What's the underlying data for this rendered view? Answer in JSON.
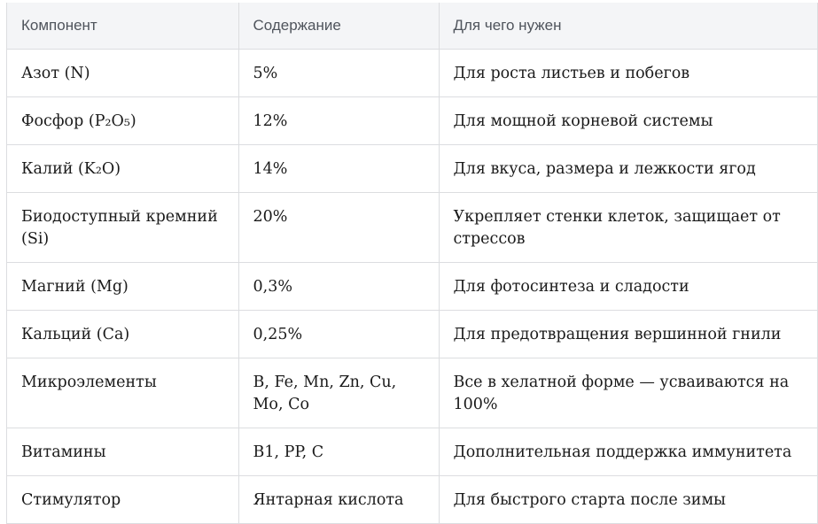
{
  "table": {
    "headers": [
      "Компонент",
      "Содержание",
      "Для чего нужен"
    ],
    "rows": [
      {
        "component": "Азот (N)",
        "content": "5%",
        "purpose": "Для роста листьев и побегов"
      },
      {
        "component": "Фосфор (P₂O₅)",
        "content": "12%",
        "purpose": "Для мощной корневой системы"
      },
      {
        "component": "Калий (K₂O)",
        "content": "14%",
        "purpose": "Для вкуса, размера и лежкости ягод"
      },
      {
        "component": "Биодоступный кремний (Si)",
        "content": "20%",
        "purpose": "Укрепляет стенки клеток, защищает от стрессов"
      },
      {
        "component": "Магний (Mg)",
        "content": "0,3%",
        "purpose": "Для фотосинтеза и сладости"
      },
      {
        "component": "Кальций (Ca)",
        "content": "0,25%",
        "purpose": "Для предотвращения вершинной гнили"
      },
      {
        "component": "Микроэлементы",
        "content": "B, Fe, Mn, Zn, Cu, Mo, Co",
        "purpose": "Все в хелатной форме — усваиваются на 100%"
      },
      {
        "component": "Витамины",
        "content": "B1, PP, C",
        "purpose": "Дополнительная поддержка иммунитета"
      },
      {
        "component": "Стимулятор",
        "content": "Янтарная кислота",
        "purpose": "Для быстрого старта после зимы"
      }
    ]
  }
}
